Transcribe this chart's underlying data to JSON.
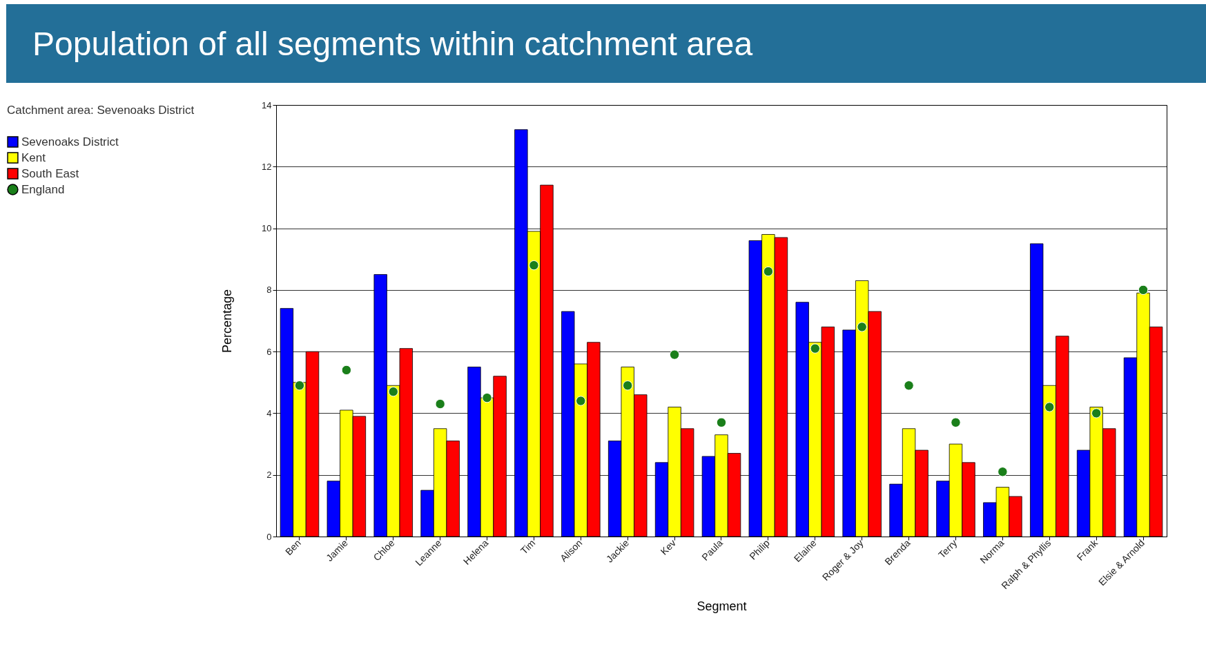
{
  "chart_data": {
    "type": "bar",
    "title": "Population of all segments within catchment area",
    "xlabel": "Segment",
    "ylabel": "Percentage",
    "legend_title": "Catchment area: Sevenoaks District",
    "categories": [
      "Ben",
      "Jamie",
      "Chloe",
      "Leanne",
      "Helena",
      "Tim",
      "Alison",
      "Jackie",
      "Kev",
      "Paula",
      "Philip",
      "Elaine",
      "Roger & Joy",
      "Brenda",
      "Terry",
      "Norma",
      "Ralph & Phyllis",
      "Frank",
      "Elsie & Arnold"
    ],
    "series": [
      {
        "name": "Sevenoaks District",
        "color": "#0000ff",
        "values": [
          7.4,
          1.8,
          8.5,
          1.5,
          5.5,
          13.2,
          7.3,
          3.1,
          2.4,
          2.6,
          9.6,
          7.6,
          6.7,
          1.7,
          1.8,
          1.1,
          9.5,
          2.8,
          5.8
        ]
      },
      {
        "name": "Kent",
        "color": "#ffff00",
        "values": [
          5.0,
          4.1,
          4.9,
          3.5,
          4.5,
          9.9,
          5.6,
          5.5,
          4.2,
          3.3,
          9.8,
          6.3,
          8.3,
          3.5,
          3.0,
          1.6,
          4.9,
          4.2,
          7.9
        ]
      },
      {
        "name": "South East",
        "color": "#ff0000",
        "values": [
          6.0,
          3.9,
          6.1,
          3.1,
          5.2,
          11.4,
          6.3,
          4.6,
          3.5,
          2.7,
          9.7,
          6.8,
          7.3,
          2.8,
          2.4,
          1.3,
          6.5,
          3.5,
          6.8
        ]
      },
      {
        "name": "England",
        "type": "scatter",
        "color": "#1a7f1a",
        "values": [
          4.9,
          5.4,
          4.7,
          4.3,
          4.5,
          8.8,
          4.4,
          4.9,
          5.9,
          3.7,
          8.6,
          6.1,
          6.8,
          4.9,
          3.7,
          2.1,
          4.2,
          4.0,
          8.0
        ]
      }
    ],
    "ylim": [
      0,
      14
    ],
    "yticks": [
      0,
      2,
      4,
      6,
      8,
      10,
      12,
      14
    ],
    "grid": "y",
    "legend": "left",
    "marker": "circle"
  }
}
